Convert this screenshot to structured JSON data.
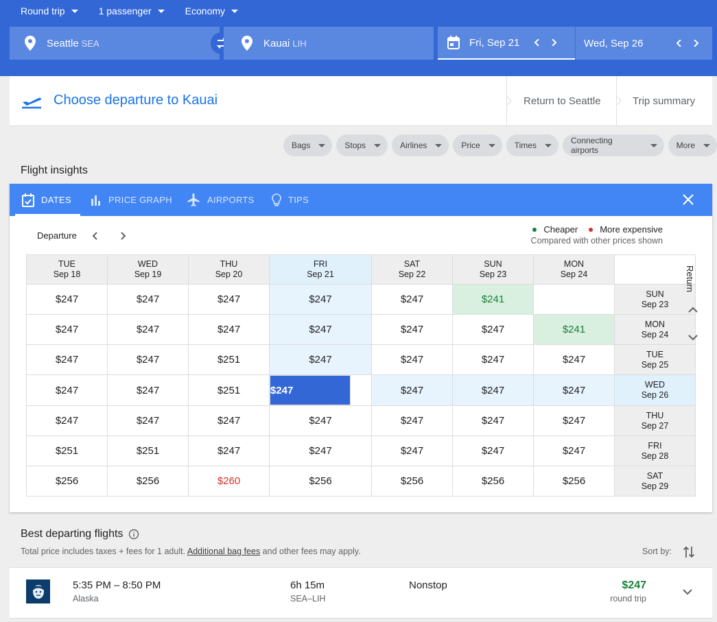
{
  "search": {
    "trip_type": "Round trip",
    "passengers": "1 passenger",
    "cabin": "Economy",
    "origin_city": "Seattle",
    "origin_code": "SEA",
    "destination_city": "Kauai",
    "destination_code": "LIH",
    "depart_date": "Fri, Sep 21",
    "return_date": "Wed, Sep 26"
  },
  "header": {
    "title": "Choose departure to Kauai",
    "step_return": "Return to Seattle",
    "step_summary": "Trip summary"
  },
  "filters": [
    "Bags",
    "Stops",
    "Airlines",
    "Price",
    "Times",
    "Connecting airports",
    "More"
  ],
  "insights": {
    "title": "Flight insights",
    "tabs": [
      "DATES",
      "PRICE GRAPH",
      "AIRPORTS",
      "TIPS"
    ],
    "departure_label": "Departure",
    "return_label": "Return",
    "legend_cheaper": "Cheaper",
    "legend_expensive": "More expensive",
    "legend_note": "Compared with other prices shown",
    "colors": {
      "cheaper": "#188038",
      "expensive": "#d93025",
      "selected": "#3367d6"
    },
    "columns": [
      {
        "dow": "TUE",
        "date": "Sep 18"
      },
      {
        "dow": "WED",
        "date": "Sep 19"
      },
      {
        "dow": "THU",
        "date": "Sep 20"
      },
      {
        "dow": "FRI",
        "date": "Sep 21"
      },
      {
        "dow": "SAT",
        "date": "Sep 22"
      },
      {
        "dow": "SUN",
        "date": "Sep 23"
      },
      {
        "dow": "MON",
        "date": "Sep 24"
      }
    ],
    "rows": [
      {
        "dow": "SUN",
        "date": "Sep 23",
        "prices": [
          "$247",
          "$247",
          "$247",
          "$247",
          "$247",
          "$241",
          ""
        ]
      },
      {
        "dow": "MON",
        "date": "Sep 24",
        "prices": [
          "$247",
          "$247",
          "$247",
          "$247",
          "$247",
          "$247",
          "$241"
        ]
      },
      {
        "dow": "TUE",
        "date": "Sep 25",
        "prices": [
          "$247",
          "$247",
          "$251",
          "$247",
          "$247",
          "$247",
          "$247"
        ]
      },
      {
        "dow": "WED",
        "date": "Sep 26",
        "prices": [
          "$247",
          "$247",
          "$251",
          "$247",
          "$247",
          "$247",
          "$247"
        ]
      },
      {
        "dow": "THU",
        "date": "Sep 27",
        "prices": [
          "$247",
          "$247",
          "$247",
          "$247",
          "$247",
          "$247",
          "$247"
        ]
      },
      {
        "dow": "FRI",
        "date": "Sep 28",
        "prices": [
          "$251",
          "$251",
          "$247",
          "$247",
          "$247",
          "$247",
          "$247"
        ]
      },
      {
        "dow": "SAT",
        "date": "Sep 29",
        "prices": [
          "$256",
          "$256",
          "$260",
          "$256",
          "$256",
          "$256",
          "$256"
        ]
      }
    ],
    "selected": {
      "row": 3,
      "col": 3
    },
    "cheaper_cells": [
      [
        0,
        5
      ],
      [
        1,
        6
      ]
    ],
    "expensive_cells": [
      [
        6,
        2
      ]
    ]
  },
  "best": {
    "title": "Best departing flights",
    "subtitle_pre": "Total price includes taxes + fees for 1 adult. ",
    "subtitle_link": "Additional bag fees",
    "subtitle_post": " and other fees may apply.",
    "sort_label": "Sort by:",
    "flights": [
      {
        "times": "5:35 PM – 8:50 PM",
        "airline": "Alaska",
        "duration": "6h 15m",
        "route": "SEA–LIH",
        "stops": "Nonstop",
        "price": "$247",
        "price_type": "round trip"
      }
    ]
  }
}
